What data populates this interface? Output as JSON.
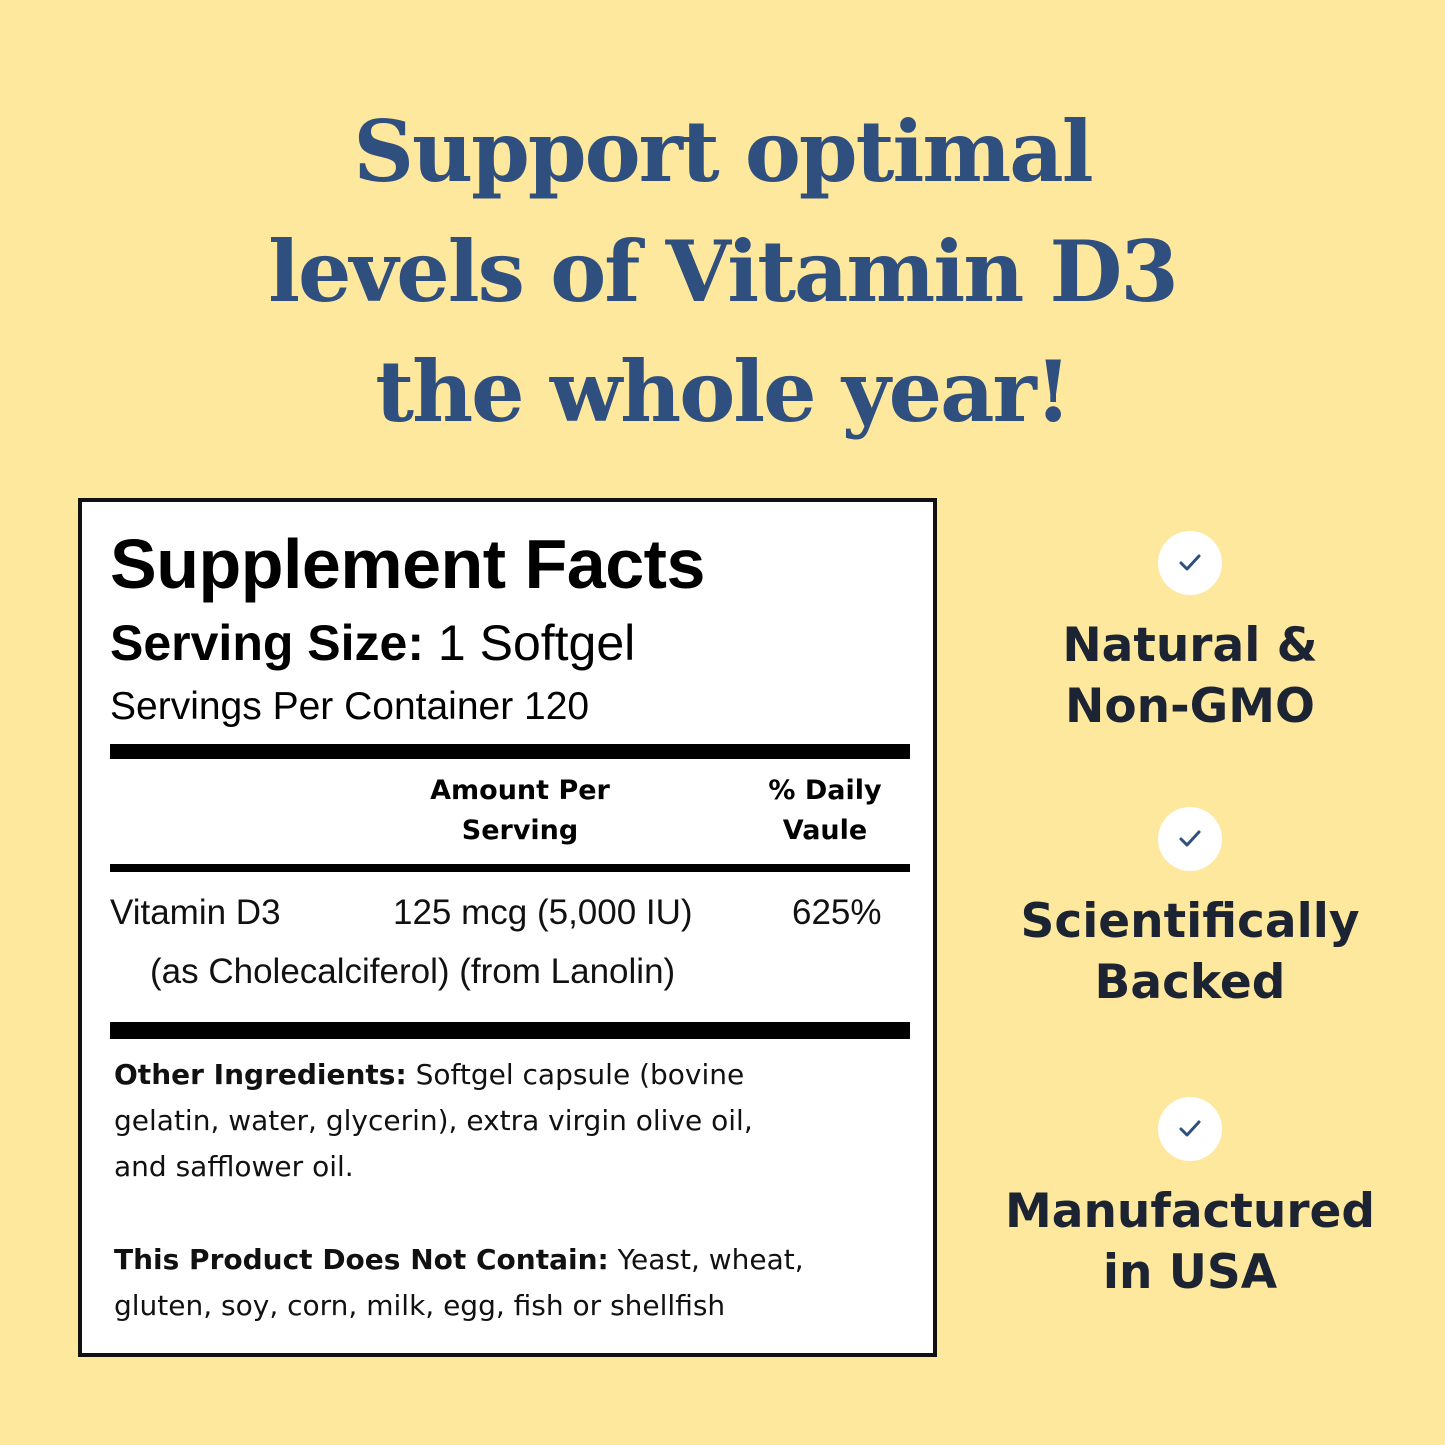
{
  "headline": {
    "line1": "Support optimal",
    "line2": "levels of Vitamin D3",
    "line3": "the whole year!"
  },
  "facts": {
    "title": "Supplement Facts",
    "serving_size_label": "Serving Size:",
    "serving_size_value": " 1 Softgel",
    "servings_per_container": "Servings Per Container 120",
    "col_amount_line1": "Amount Per",
    "col_amount_line2": "Serving",
    "col_dv_line1": "% Daily",
    "col_dv_line2": "Vaule",
    "nutrient_name": "Vitamin D3",
    "nutrient_amount": "125 mcg (5,000 IU)",
    "nutrient_dv": "625%",
    "nutrient_source": "(as Cholecalciferol) (from Lanolin)",
    "other_label": "Other Ingredients:",
    "other_line1": " Softgel capsule (bovine",
    "other_line2": "gelatin, water, glycerin), extra virgin olive oil,",
    "other_line3": "and safflower oil.",
    "not_contain_label": "This Product Does Not Contain:",
    "not_contain_line1": " Yeast, wheat,",
    "not_contain_line2": "gluten, soy, corn, milk, egg, fish or shellfish"
  },
  "badges": [
    {
      "icon": "check-icon",
      "line1": "Natural &",
      "line2": "Non-GMO"
    },
    {
      "icon": "check-icon",
      "line1": "Scientifically",
      "line2": "Backed"
    },
    {
      "icon": "check-icon",
      "line1": "Manufactured",
      "line2": "in USA"
    }
  ],
  "colors": {
    "background": "#fde89e",
    "headline": "#2f4f7e",
    "badge_text": "#1c2433",
    "check": "#2f4f7e"
  }
}
